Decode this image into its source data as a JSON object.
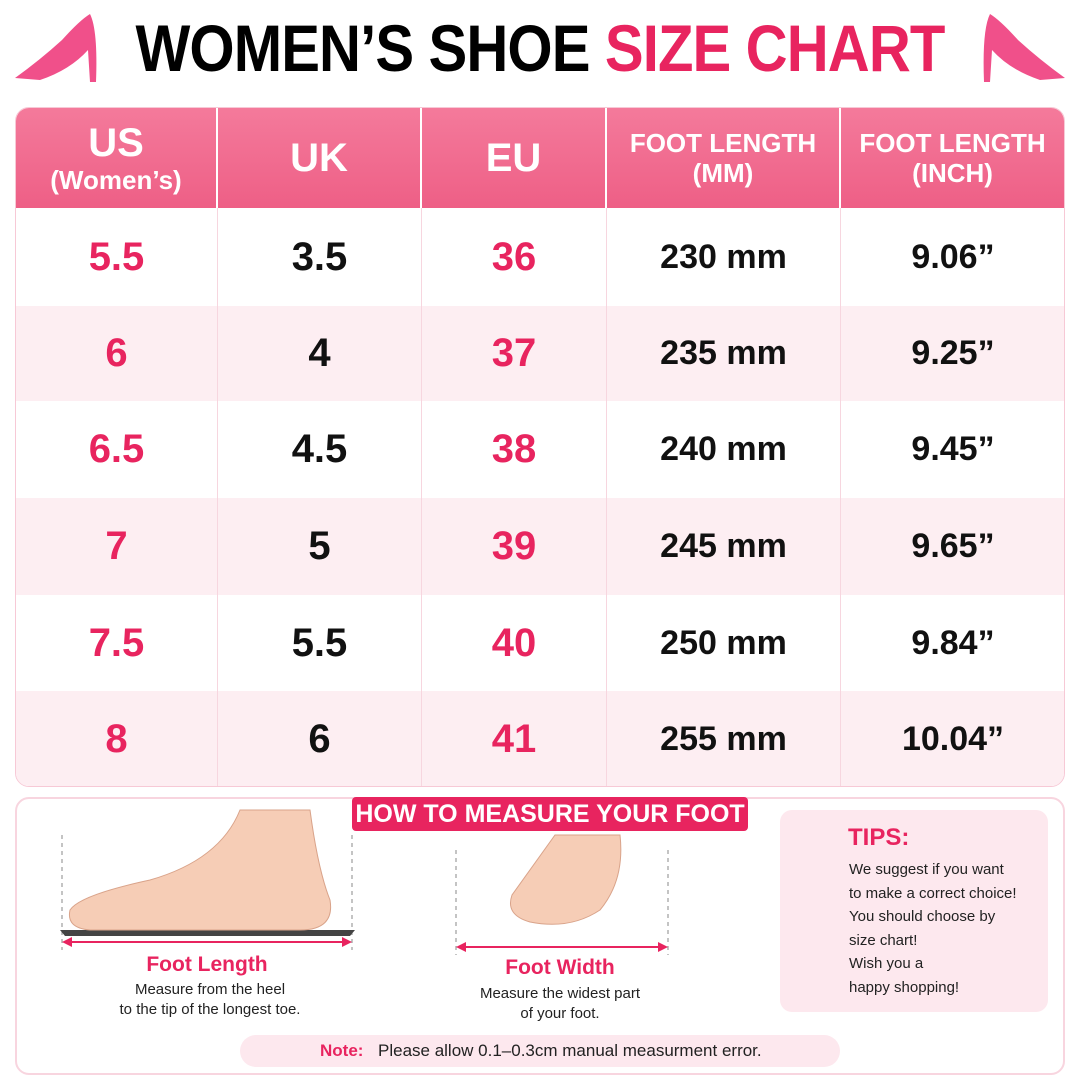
{
  "header": {
    "title_main": "WOMEN’S SHOE",
    "title_accent": "SIZE CHART"
  },
  "table": {
    "columns": [
      [
        "US",
        "(Women’s)"
      ],
      [
        "UK"
      ],
      [
        "EU"
      ],
      [
        "FOOT LENGTH",
        "(MM)"
      ],
      [
        "FOOT LENGTH",
        "(INCH)"
      ]
    ],
    "rows": [
      [
        "5.5",
        "3.5",
        "36",
        "230 mm",
        "9.06”"
      ],
      [
        "6",
        "4",
        "37",
        "235 mm",
        "9.25”"
      ],
      [
        "6.5",
        "4.5",
        "38",
        "240 mm",
        "9.45”"
      ],
      [
        "7",
        "5",
        "39",
        "245 mm",
        "9.65”"
      ],
      [
        "7.5",
        "5.5",
        "40",
        "250 mm",
        "9.84”"
      ],
      [
        "8",
        "6",
        "41",
        "255 mm",
        "10.04”"
      ]
    ]
  },
  "measure": {
    "title": "HOW TO MEASURE YOUR FOOT",
    "length": {
      "label": "Foot Length",
      "text": [
        "Measure from the heel",
        "to the tip of the longest toe."
      ]
    },
    "width": {
      "label": "Foot Width",
      "text": [
        "Measure the widest part",
        "of your foot."
      ]
    }
  },
  "tips": {
    "title": "TIPS:",
    "lines": [
      "We suggest if you want",
      "to make a correct choice!",
      "You should choose by",
      "size chart!",
      "Wish you a",
      "happy shopping!"
    ]
  },
  "note": {
    "label": "Note:",
    "text": "Please allow 0.1–0.3cm manual measurment error."
  }
}
